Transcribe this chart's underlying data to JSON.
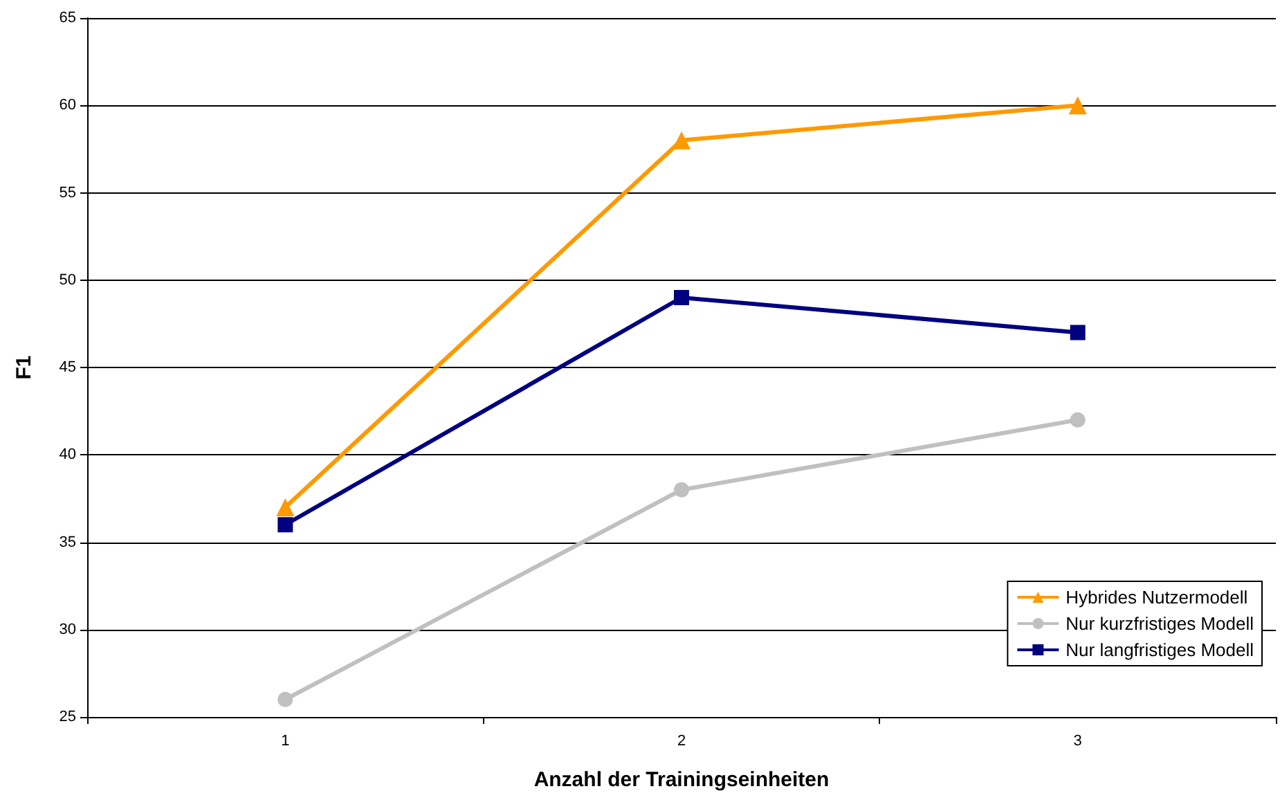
{
  "chart_data": {
    "type": "line",
    "xlabel": "Anzahl der Trainingseinheiten",
    "ylabel": "F1",
    "categories": [
      "1",
      "2",
      "3"
    ],
    "series": [
      {
        "name": "Hybrides Nutzermodell",
        "color": "#ff9900",
        "values": [
          37,
          58,
          60
        ],
        "marker": "triangle"
      },
      {
        "name": "Nur kurzfristiges Modell",
        "color": "#c0c0c0",
        "values": [
          26,
          38,
          42
        ],
        "marker": "circle"
      },
      {
        "name": "Nur langfristiges Modell",
        "color": "#000080",
        "values": [
          36,
          49,
          47
        ],
        "marker": "square"
      }
    ],
    "ylim": [
      25,
      65
    ],
    "yticks": [
      25,
      30,
      35,
      40,
      45,
      50,
      55,
      60,
      65
    ],
    "grid": "y",
    "legend": "bottom right",
    "line_style": "solid"
  }
}
